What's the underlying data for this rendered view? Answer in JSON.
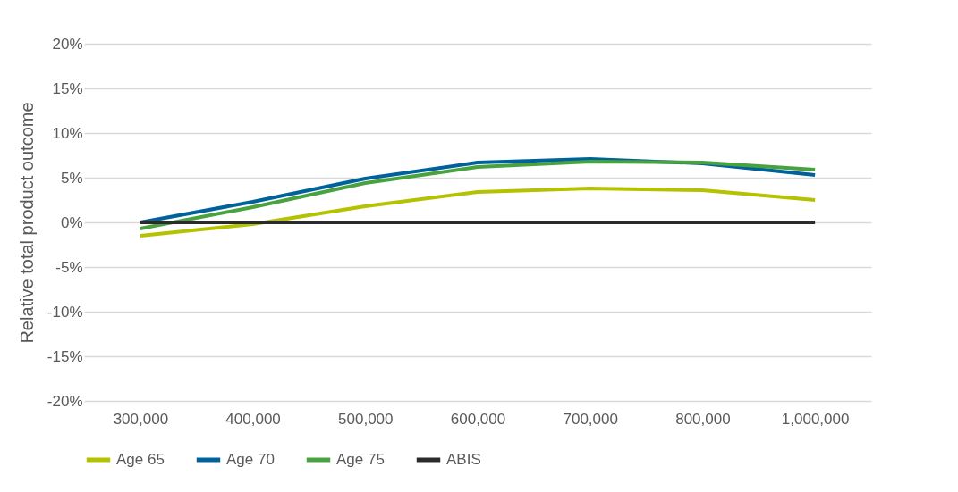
{
  "chart_data": {
    "type": "line",
    "ylabel": "Relative total product outcome",
    "categories": [
      "300,000",
      "400,000",
      "500,000",
      "600,000",
      "700,000",
      "800,000",
      "1,000,000"
    ],
    "series": [
      {
        "name": "Age 65",
        "color": "#b5c200",
        "values": [
          -1.5,
          -0.2,
          1.8,
          3.4,
          3.8,
          3.6,
          2.5
        ]
      },
      {
        "name": "Age 70",
        "color": "#00629b",
        "values": [
          0,
          2.3,
          4.9,
          6.7,
          7.1,
          6.6,
          5.3
        ]
      },
      {
        "name": "Age 75",
        "color": "#48a23f",
        "values": [
          -0.7,
          1.7,
          4.4,
          6.2,
          6.8,
          6.7,
          5.9
        ]
      },
      {
        "name": "ABIS",
        "color": "#2b2b2b",
        "values": [
          0,
          0,
          0,
          0,
          0,
          0,
          0
        ]
      }
    ],
    "ylim": [
      -20,
      20
    ],
    "yticks": [
      {
        "value": -20,
        "label": "-20%"
      },
      {
        "value": -15,
        "label": "-15%"
      },
      {
        "value": -10,
        "label": "-10%"
      },
      {
        "value": -5,
        "label": "-5%"
      },
      {
        "value": 0,
        "label": "0%"
      },
      {
        "value": 5,
        "label": "5%"
      },
      {
        "value": 10,
        "label": "10%"
      },
      {
        "value": 15,
        "label": "15%"
      },
      {
        "value": 20,
        "label": "20%"
      }
    ],
    "grid": "y",
    "legend": "bottom",
    "line_style": "solid"
  }
}
